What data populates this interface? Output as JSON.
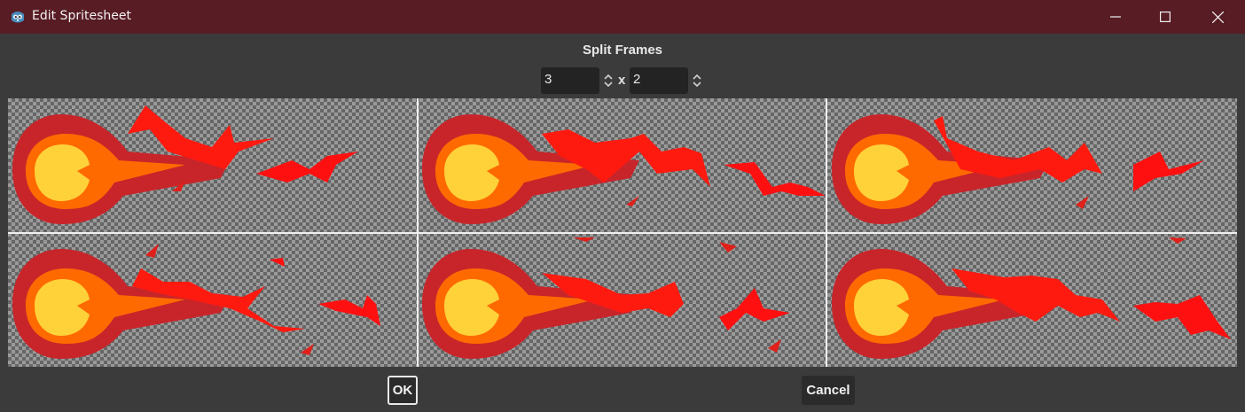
{
  "window": {
    "title": "Edit Spritesheet",
    "controls": [
      "minimize-icon",
      "maximize-icon",
      "close-icon"
    ]
  },
  "dialog": {
    "split_label": "Split Frames",
    "horizontal_value": "3",
    "vertical_value": "2",
    "separator": "x",
    "ok_label": "OK",
    "cancel_label": "Cancel"
  },
  "spritesheet": {
    "columns": 3,
    "rows": 2,
    "frames": [
      "frame-1",
      "frame-2",
      "frame-3",
      "frame-4",
      "frame-5",
      "frame-6"
    ]
  },
  "colors": {
    "titlebar": "#581c24",
    "background": "#3b3b3b",
    "fireball_outer": "#c8252a",
    "fireball_mid": "#ff6a00",
    "fireball_core": "#ffd23a",
    "flame_red": "#ff1010"
  }
}
